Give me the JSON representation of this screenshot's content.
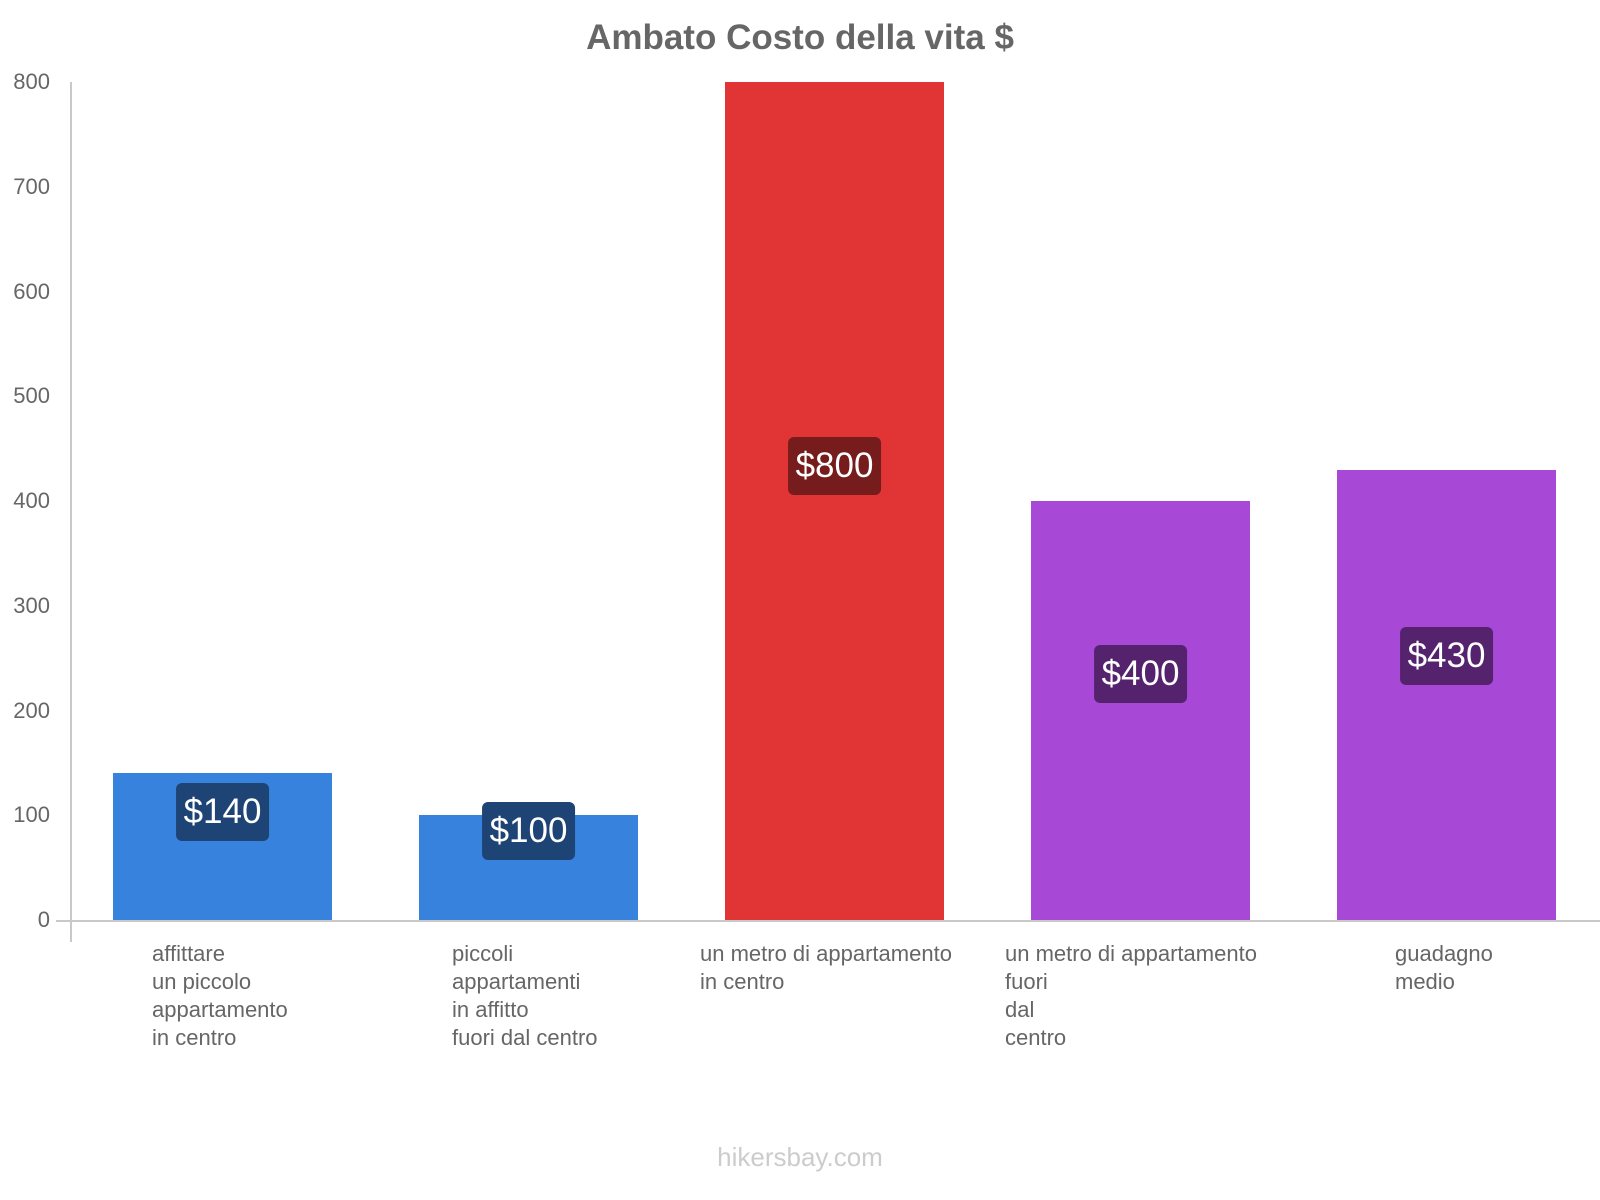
{
  "chart_data": {
    "type": "bar",
    "title": "Ambato Costo della vita $",
    "xlabel": "",
    "ylabel": "",
    "ylim": [
      0,
      800
    ],
    "yticks": [
      0,
      100,
      200,
      300,
      400,
      500,
      600,
      700,
      800
    ],
    "grid": false,
    "legend": null,
    "categories": [
      "affittare un piccolo appartamento in centro",
      "piccoli appartamenti in affitto fuori dal centro",
      "un metro di appartamento in centro",
      "un metro di appartamento fuori dal centro",
      "guadagno medio"
    ],
    "values": [
      140,
      100,
      800,
      400,
      430
    ],
    "value_labels": [
      "$140",
      "$100",
      "$800",
      "$400",
      "$430"
    ],
    "colors": [
      "#3682dd",
      "#3682dd",
      "#e13535",
      "#a848d6",
      "#a848d6"
    ],
    "label_bg_colors": [
      "#1d4474",
      "#1d4474",
      "#761c1c",
      "#55236e",
      "#55236e"
    ]
  },
  "title": "Ambato Costo della vita $",
  "yticks": [
    "0",
    "100",
    "200",
    "300",
    "400",
    "500",
    "600",
    "700",
    "800"
  ],
  "bars": [
    {
      "label": "$140",
      "xlabel": "affittare\nun piccolo\nappartamento\nin centro"
    },
    {
      "label": "$100",
      "xlabel": "piccoli\nappartamenti\nin affitto\nfuori dal centro"
    },
    {
      "label": "$800",
      "xlabel": "un metro di appartamento\nin centro"
    },
    {
      "label": "$400",
      "xlabel": "un metro di appartamento\nfuori\ndal\ncentro"
    },
    {
      "label": "$430",
      "xlabel": "guadagno\nmedio"
    }
  ],
  "footer": "hikersbay.com"
}
